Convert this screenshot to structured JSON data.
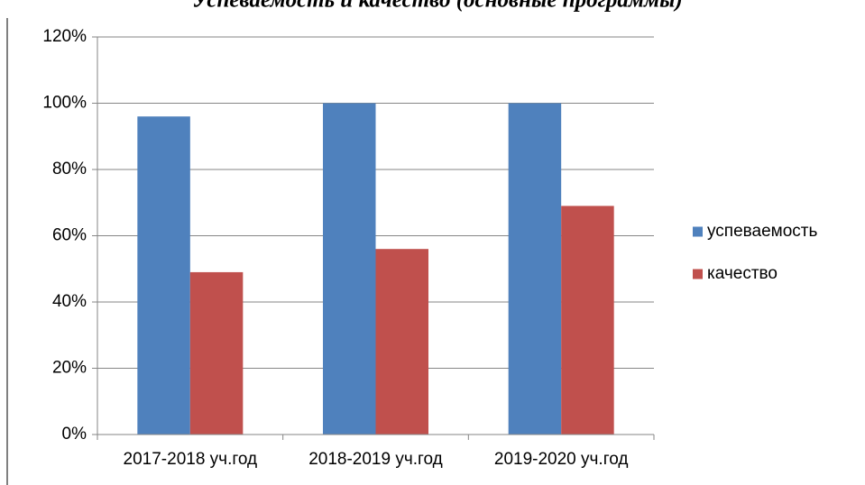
{
  "chart_data": {
    "type": "bar",
    "title": "Успеваемость и качество (основные программы)",
    "categories": [
      "2017-2018 уч.год",
      "2018-2019 уч.год",
      "2019-2020 уч.год"
    ],
    "series": [
      {
        "name": "успеваемость",
        "color": "#4f81bd",
        "values": [
          96,
          100,
          100
        ]
      },
      {
        "name": "качество",
        "color": "#c0504d",
        "values": [
          49,
          56,
          69
        ]
      }
    ],
    "ylim": [
      0,
      120
    ],
    "yticks": [
      {
        "value": 0,
        "label": "0%"
      },
      {
        "value": 20,
        "label": "20%"
      },
      {
        "value": 40,
        "label": "40%"
      },
      {
        "value": 60,
        "label": "60%"
      },
      {
        "value": 80,
        "label": "80%"
      },
      {
        "value": 100,
        "label": "100%"
      },
      {
        "value": 120,
        "label": "120%"
      }
    ],
    "grid": true,
    "legend": "right"
  }
}
